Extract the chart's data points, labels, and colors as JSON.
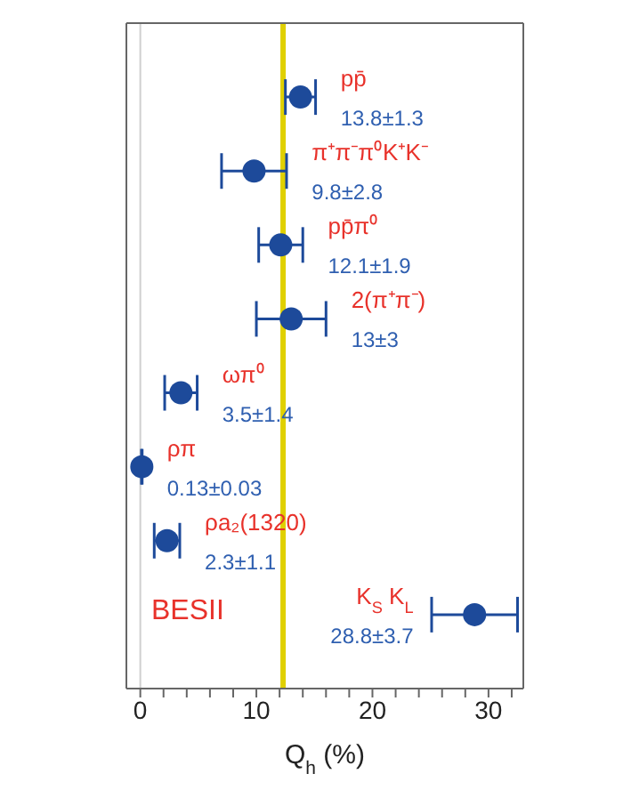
{
  "chart_data": {
    "type": "scatter",
    "orientation": "horizontal",
    "xlabel": "Q$_{h}$ (%)",
    "categories": [
      "pp̄",
      "π⁺π⁻π⁰K⁺K⁻",
      "pp̄π⁰",
      "2(π⁺π⁻)",
      "ωπ⁰",
      "ρπ",
      "ρa₂(1320)",
      "K$_{S}$K$_{L}$"
    ],
    "series": [
      {
        "color": "#1d4a9a",
        "values": [
          13.8,
          9.8,
          12.1,
          13,
          3.5,
          0.13,
          2.3,
          28.8
        ],
        "errors": [
          1.3,
          2.8,
          1.9,
          3,
          1.4,
          0.03,
          1.1,
          3.7
        ],
        "value_labels": [
          "13.8±1.3",
          "9.8±2.8",
          "12.1±1.9",
          "13±3",
          "3.5±1.4",
          "0.13±0.03",
          "2.3±1.1",
          "28.8±3.7"
        ]
      }
    ],
    "marker": "circle",
    "xlim": [
      -1.2,
      33
    ],
    "xticks": [
      0,
      {
        "value": 2,
        "label": null
      },
      {
        "value": 4,
        "label": null
      },
      {
        "value": 6,
        "label": null
      },
      {
        "value": 8,
        "label": null
      },
      10,
      {
        "value": 12,
        "label": null
      },
      {
        "value": 14,
        "label": null
      },
      {
        "value": 16,
        "label": null
      },
      {
        "value": 18,
        "label": null
      },
      20,
      {
        "value": 22,
        "label": null
      },
      {
        "value": 24,
        "label": null
      },
      {
        "value": 26,
        "label": null
      },
      {
        "value": 28,
        "label": null
      },
      30,
      {
        "value": 32,
        "label": null
      }
    ],
    "ref_lines": [
      {
        "axis": "x",
        "value": 0,
        "color": "#d0d0d0"
      },
      {
        "axis": "x",
        "value": 12.3,
        "color": "#e0d000"
      }
    ],
    "annotations": [
      "BESII"
    ]
  }
}
